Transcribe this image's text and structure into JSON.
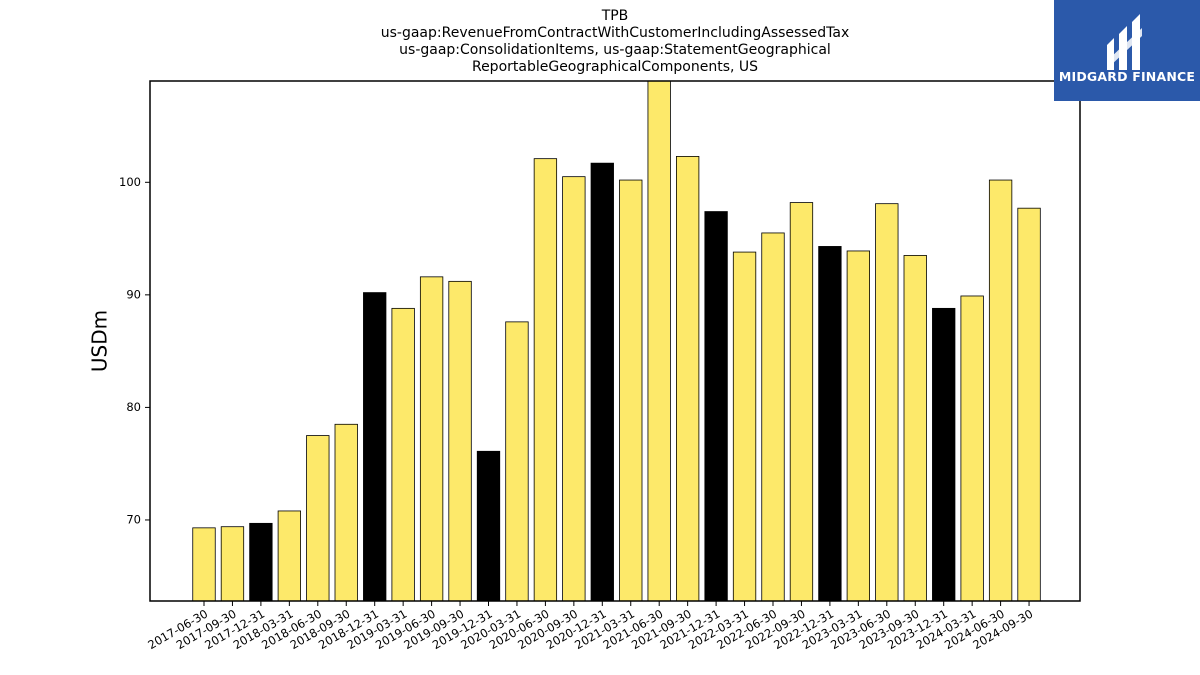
{
  "colors": {
    "bar_default": "#fde96a",
    "bar_highlight": "#000000",
    "bar_edge": "#000000",
    "logo_bg": "#2b59aa",
    "logo_fg": "#ffffff"
  },
  "logo": {
    "text": "MIDGARD FINANCE",
    "icon": "midgard-monogram-icon"
  },
  "chart_data": {
    "type": "bar",
    "title": [
      "TPB",
      "us-gaap:RevenueFromContractWithCustomerIncludingAssessedTax",
      "us-gaap:ConsolidationItems, us-gaap:StatementGeographical",
      "ReportableGeographicalComponents, US"
    ],
    "xlabel": "",
    "ylabel": "USDm",
    "ylim": [
      62.8,
      109
    ],
    "yticks": [
      70,
      80,
      90,
      100
    ],
    "grid": false,
    "categories": [
      "2017-06-30",
      "2017-09-30",
      "2017-12-31",
      "2018-03-31",
      "2018-06-30",
      "2018-09-30",
      "2018-12-31",
      "2019-03-31",
      "2019-06-30",
      "2019-09-30",
      "2019-12-31",
      "2020-03-31",
      "2020-06-30",
      "2020-09-30",
      "2020-12-31",
      "2021-03-31",
      "2021-06-30",
      "2021-09-30",
      "2021-12-31",
      "2022-03-31",
      "2022-06-30",
      "2022-09-30",
      "2022-12-31",
      "2023-03-31",
      "2023-06-30",
      "2023-09-30",
      "2023-12-31",
      "2024-03-31",
      "2024-06-30",
      "2024-09-30"
    ],
    "values": [
      69.3,
      69.4,
      69.7,
      70.8,
      77.5,
      78.5,
      90.2,
      88.8,
      91.6,
      91.2,
      76.1,
      87.6,
      102.1,
      100.5,
      101.7,
      100.2,
      109.3,
      102.3,
      97.4,
      93.8,
      95.5,
      98.2,
      94.3,
      93.9,
      98.1,
      93.5,
      88.8,
      89.9,
      100.2,
      97.7
    ],
    "highlight_categories": [
      "2017-12-31",
      "2018-12-31",
      "2019-12-31",
      "2020-12-31",
      "2021-12-31",
      "2022-12-31",
      "2023-12-31"
    ]
  }
}
